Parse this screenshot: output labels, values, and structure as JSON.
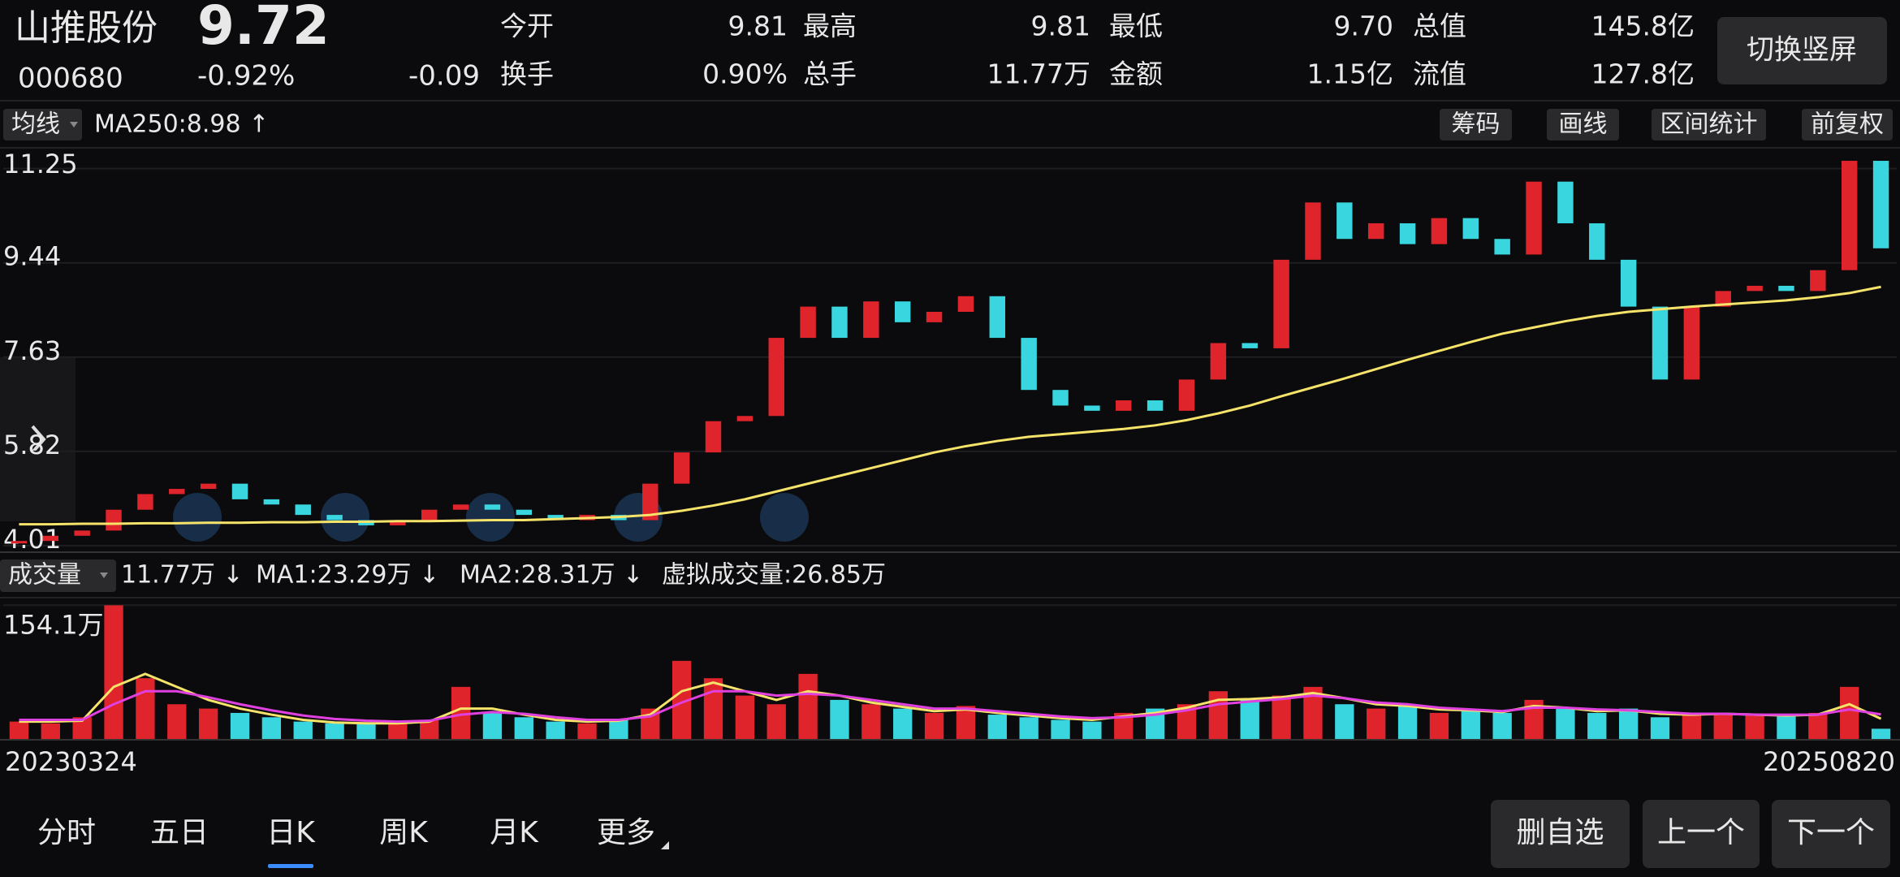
{
  "header": {
    "name": "山推股份",
    "price": "9.72",
    "code": "000680",
    "change_pct": "-0.92%",
    "change": "-0.09",
    "stats": [
      {
        "label": "今开",
        "value": "9.81"
      },
      {
        "label": "最高",
        "value": "9.81"
      },
      {
        "label": "最低",
        "value": "9.70"
      },
      {
        "label": "总值",
        "value": "145.8亿"
      },
      {
        "label": "换手",
        "value": "0.90%"
      },
      {
        "label": "总手",
        "value": "11.77万"
      },
      {
        "label": "金额",
        "value": "1.15亿"
      },
      {
        "label": "流值",
        "value": "127.8亿"
      }
    ],
    "button": "切换竖屏"
  },
  "toolbar": {
    "selector": "均线",
    "ma_label": "MA250:8.98 ↑",
    "buttons": [
      "筹码",
      "画线",
      "区间统计",
      "前复权"
    ]
  },
  "chart_data": {
    "type": "candlestick",
    "ylim": [
      3.9,
      11.65
    ],
    "yticks": [
      11.25,
      9.44,
      7.63,
      5.82,
      4.01
    ],
    "up_color": "#e0242b",
    "down_color": "#3ad6e0",
    "ma_color": "#f5e36a",
    "closes": [
      4.1,
      4.2,
      4.3,
      4.7,
      5.0,
      5.1,
      5.2,
      4.9,
      4.8,
      4.6,
      4.5,
      4.4,
      4.5,
      4.7,
      4.8,
      4.7,
      4.6,
      4.5,
      4.6,
      4.5,
      5.2,
      5.8,
      6.4,
      6.5,
      8.0,
      8.6,
      8.0,
      8.7,
      8.3,
      8.5,
      8.8,
      8.0,
      7.0,
      6.7,
      6.6,
      6.8,
      6.6,
      7.2,
      7.9,
      7.8,
      9.5,
      10.6,
      9.9,
      10.2,
      9.8,
      10.3,
      9.9,
      9.6,
      11.0,
      10.2,
      9.5,
      8.6,
      7.2,
      8.6,
      8.9,
      9.0,
      8.9,
      9.3,
      11.4,
      9.72
    ],
    "ma250": [
      4.42,
      4.42,
      4.43,
      4.43,
      4.44,
      4.44,
      4.45,
      4.45,
      4.46,
      4.46,
      4.47,
      4.47,
      4.48,
      4.48,
      4.49,
      4.5,
      4.5,
      4.52,
      4.54,
      4.56,
      4.6,
      4.68,
      4.78,
      4.9,
      5.05,
      5.2,
      5.35,
      5.5,
      5.65,
      5.8,
      5.92,
      6.02,
      6.1,
      6.15,
      6.2,
      6.25,
      6.32,
      6.42,
      6.55,
      6.7,
      6.88,
      7.05,
      7.22,
      7.4,
      7.58,
      7.75,
      7.92,
      8.08,
      8.2,
      8.32,
      8.42,
      8.5,
      8.55,
      8.6,
      8.64,
      8.68,
      8.72,
      8.78,
      8.86,
      8.98
    ]
  },
  "volume": {
    "selector": "成交量",
    "current": "11.77万 ↓",
    "ma1_label": "MA1:23.29万 ↓",
    "ma2_label": "MA2:28.31万 ↓",
    "virtual_label": "虚拟成交量:26.85万",
    "ylim": [
      0,
      160
    ],
    "yticks": [
      {
        "value": 154.1,
        "label": "154.1万"
      }
    ],
    "ma1_color": "#f5e36a",
    "ma2_color": "#e040e0",
    "values": [
      20,
      18,
      25,
      154,
      70,
      40,
      35,
      30,
      25,
      20,
      18,
      17,
      18,
      22,
      60,
      30,
      25,
      20,
      18,
      22,
      35,
      90,
      70,
      50,
      40,
      75,
      45,
      40,
      35,
      30,
      38,
      28,
      25,
      22,
      20,
      30,
      35,
      40,
      55,
      45,
      50,
      60,
      40,
      35,
      38,
      30,
      32,
      30,
      45,
      35,
      30,
      35,
      25,
      28,
      30,
      27,
      26,
      30,
      60,
      11.77
    ],
    "ma1": [
      20,
      20,
      21,
      60,
      75,
      60,
      45,
      35,
      28,
      22,
      19,
      18,
      18,
      20,
      35,
      35,
      28,
      22,
      20,
      21,
      28,
      55,
      65,
      55,
      45,
      55,
      50,
      42,
      37,
      32,
      34,
      30,
      27,
      24,
      22,
      26,
      30,
      36,
      45,
      46,
      48,
      53,
      47,
      40,
      38,
      34,
      33,
      31,
      38,
      36,
      32,
      33,
      29,
      28,
      29,
      28,
      27,
      28,
      40,
      23.29
    ],
    "ma2": [
      22,
      22,
      22,
      40,
      55,
      55,
      48,
      40,
      33,
      27,
      23,
      21,
      20,
      21,
      28,
      31,
      29,
      25,
      22,
      22,
      26,
      42,
      55,
      55,
      50,
      52,
      50,
      45,
      40,
      35,
      35,
      32,
      29,
      26,
      24,
      25,
      28,
      33,
      40,
      43,
      46,
      50,
      47,
      42,
      40,
      36,
      34,
      32,
      36,
      36,
      34,
      33,
      31,
      29,
      29,
      28,
      28,
      28,
      34,
      28.31
    ]
  },
  "dates": {
    "start": "20230324",
    "end": "20250820"
  },
  "tabs": [
    "分时",
    "五日",
    "日K",
    "周K",
    "月K",
    "更多"
  ],
  "active_tab": 2,
  "actions": [
    "删自选",
    "上一个",
    "下一个"
  ]
}
